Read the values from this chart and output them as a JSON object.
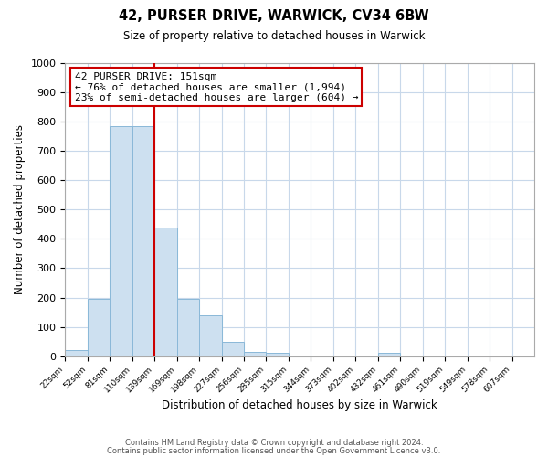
{
  "title": "42, PURSER DRIVE, WARWICK, CV34 6BW",
  "subtitle": "Size of property relative to detached houses in Warwick",
  "xlabel": "Distribution of detached houses by size in Warwick",
  "ylabel": "Number of detached properties",
  "bin_labels": [
    "22sqm",
    "52sqm",
    "81sqm",
    "110sqm",
    "139sqm",
    "169sqm",
    "198sqm",
    "227sqm",
    "256sqm",
    "285sqm",
    "315sqm",
    "344sqm",
    "373sqm",
    "402sqm",
    "432sqm",
    "461sqm",
    "490sqm",
    "519sqm",
    "549sqm",
    "578sqm",
    "607sqm"
  ],
  "bar_heights": [
    20,
    195,
    785,
    785,
    440,
    195,
    140,
    50,
    15,
    10,
    0,
    0,
    0,
    0,
    10,
    0,
    0,
    0,
    0,
    0,
    0
  ],
  "bar_color": "#cde0f0",
  "bar_edge_color": "#8ab8d8",
  "vline_x": 4.0,
  "vline_color": "#cc0000",
  "annotation_text": "42 PURSER DRIVE: 151sqm\n← 76% of detached houses are smaller (1,994)\n23% of semi-detached houses are larger (604) →",
  "annotation_box_color": "#cc0000",
  "ylim": [
    0,
    1000
  ],
  "yticks": [
    0,
    100,
    200,
    300,
    400,
    500,
    600,
    700,
    800,
    900,
    1000
  ],
  "footer1": "Contains HM Land Registry data © Crown copyright and database right 2024.",
  "footer2": "Contains public sector information licensed under the Open Government Licence v3.0.",
  "bg_color": "#ffffff",
  "grid_color": "#c8d8ea"
}
